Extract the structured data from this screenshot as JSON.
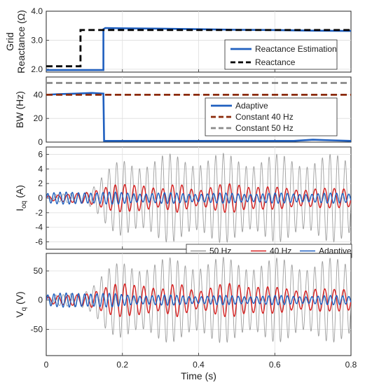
{
  "chart_data": [
    {
      "type": "line",
      "ylabel_lines": [
        "Grid",
        "Reactance (Ω)"
      ],
      "xlim": [
        0,
        0.8
      ],
      "ylim": [
        1.9,
        4.0
      ],
      "yticks": [
        "2.0",
        "3.0",
        "4.0"
      ],
      "legend": "right",
      "series": [
        {
          "name": "Reactance Estimation",
          "color": "#1f5fbf",
          "style": "solid",
          "x": [
            0,
            0.15,
            0.15,
            0.155,
            0.2,
            0.3,
            0.4,
            0.5,
            0.6,
            0.7,
            0.8
          ],
          "y": [
            1.97,
            1.97,
            3.38,
            3.42,
            3.41,
            3.4,
            3.38,
            3.36,
            3.35,
            3.33,
            3.32
          ]
        },
        {
          "name": "Reactance",
          "color": "#000000",
          "style": "dashed",
          "x": [
            0,
            0.09,
            0.09,
            0.8
          ],
          "y": [
            2.1,
            2.1,
            3.35,
            3.35
          ]
        }
      ]
    },
    {
      "type": "line",
      "ylabel": "BW (Hz)",
      "xlim": [
        0,
        0.8
      ],
      "ylim": [
        0,
        55
      ],
      "yticks": [
        "0",
        "20",
        "40"
      ],
      "legend": "right",
      "series": [
        {
          "name": "Adaptive",
          "color": "#1f5fbf",
          "style": "solid",
          "x": [
            0,
            0.03,
            0.08,
            0.12,
            0.15,
            0.152,
            0.3,
            0.5,
            0.65,
            0.7,
            0.75,
            0.8
          ],
          "y": [
            40,
            40.5,
            41,
            41.5,
            41,
            1,
            1,
            1,
            1,
            2,
            1.5,
            1
          ]
        },
        {
          "name": "Constant 40 Hz",
          "color": "#8b2a0a",
          "style": "dashed",
          "x": [
            0,
            0.8
          ],
          "y": [
            40,
            40
          ]
        },
        {
          "name": "Constant 50 Hz",
          "color": "#8a8a8a",
          "style": "dashed",
          "x": [
            0,
            0.8
          ],
          "y": [
            50,
            50
          ]
        }
      ]
    },
    {
      "type": "line",
      "ylabel_main": "I",
      "ylabel_sub": "oq",
      "ylabel_unit": " (A)",
      "xlim": [
        0,
        0.8
      ],
      "ylim": [
        -7,
        7
      ],
      "yticks": [
        "6",
        "4",
        "2",
        "0",
        "-2",
        "-4",
        "-6"
      ],
      "legend": "bottom-right",
      "series": [
        {
          "name": "50 Hz",
          "color": "#9e9e9e",
          "freq_hz": 50,
          "envelope_t": [
            0,
            0.05,
            0.1,
            0.12,
            0.15,
            0.2,
            0.3,
            0.4,
            0.5,
            0.6,
            0.7,
            0.8
          ],
          "envelope_a": [
            0.4,
            0.6,
            1.0,
            1.8,
            3.5,
            5.5,
            6.0,
            6.2,
            6.1,
            6.0,
            6.0,
            6.0
          ]
        },
        {
          "name": "40 Hz",
          "color": "#d62020",
          "freq_hz": 40,
          "envelope_t": [
            0,
            0.05,
            0.1,
            0.15,
            0.2,
            0.25,
            0.3,
            0.35,
            0.4,
            0.45,
            0.5,
            0.55,
            0.6,
            0.65,
            0.7,
            0.75,
            0.8
          ],
          "envelope_a": [
            0.3,
            0.5,
            1.0,
            1.5,
            2.0,
            2.5,
            1.2,
            2.2,
            1.4,
            1.8,
            2.2,
            2.0,
            1.5,
            1.4,
            1.6,
            1.3,
            1.5
          ]
        },
        {
          "name": "Adaptive",
          "color": "#1f5fbf",
          "freq_hz": 62,
          "envelope_t": [
            0,
            0.1,
            0.13,
            0.2,
            0.4,
            0.6,
            0.8
          ],
          "envelope_a": [
            0.7,
            1.0,
            0.9,
            0.8,
            0.7,
            0.7,
            0.7
          ]
        }
      ]
    },
    {
      "type": "line",
      "ylabel_main": "V",
      "ylabel_sub": "q",
      "ylabel_unit": " (V)",
      "xlabel": "Time (s)",
      "xlim": [
        0,
        0.8
      ],
      "ylim": [
        -95,
        80
      ],
      "xticks": [
        "0",
        "0.2",
        "0.4",
        "0.6",
        "0.8"
      ],
      "yticks": [
        "50",
        "0",
        "-50"
      ],
      "series": [
        {
          "name": "50 Hz",
          "color": "#9e9e9e",
          "freq_hz": 50,
          "envelope_t": [
            0,
            0.05,
            0.1,
            0.12,
            0.15,
            0.2,
            0.3,
            0.4,
            0.5,
            0.6,
            0.7,
            0.8
          ],
          "envelope_a": [
            8,
            10,
            18,
            30,
            50,
            68,
            72,
            74,
            73,
            72,
            72,
            72
          ]
        },
        {
          "name": "40 Hz",
          "color": "#d62020",
          "freq_hz": 40,
          "envelope_t": [
            0,
            0.05,
            0.1,
            0.15,
            0.2,
            0.25,
            0.3,
            0.35,
            0.4,
            0.45,
            0.5,
            0.55,
            0.6,
            0.65,
            0.7,
            0.75,
            0.8
          ],
          "envelope_a": [
            6,
            8,
            14,
            22,
            30,
            36,
            18,
            32,
            20,
            26,
            32,
            30,
            22,
            20,
            24,
            18,
            22
          ]
        },
        {
          "name": "Adaptive",
          "color": "#1f5fbf",
          "freq_hz": 62,
          "envelope_t": [
            0,
            0.1,
            0.13,
            0.2,
            0.4,
            0.6,
            0.8
          ],
          "envelope_a": [
            10,
            15,
            14,
            10,
            8,
            8,
            8
          ]
        }
      ]
    }
  ]
}
